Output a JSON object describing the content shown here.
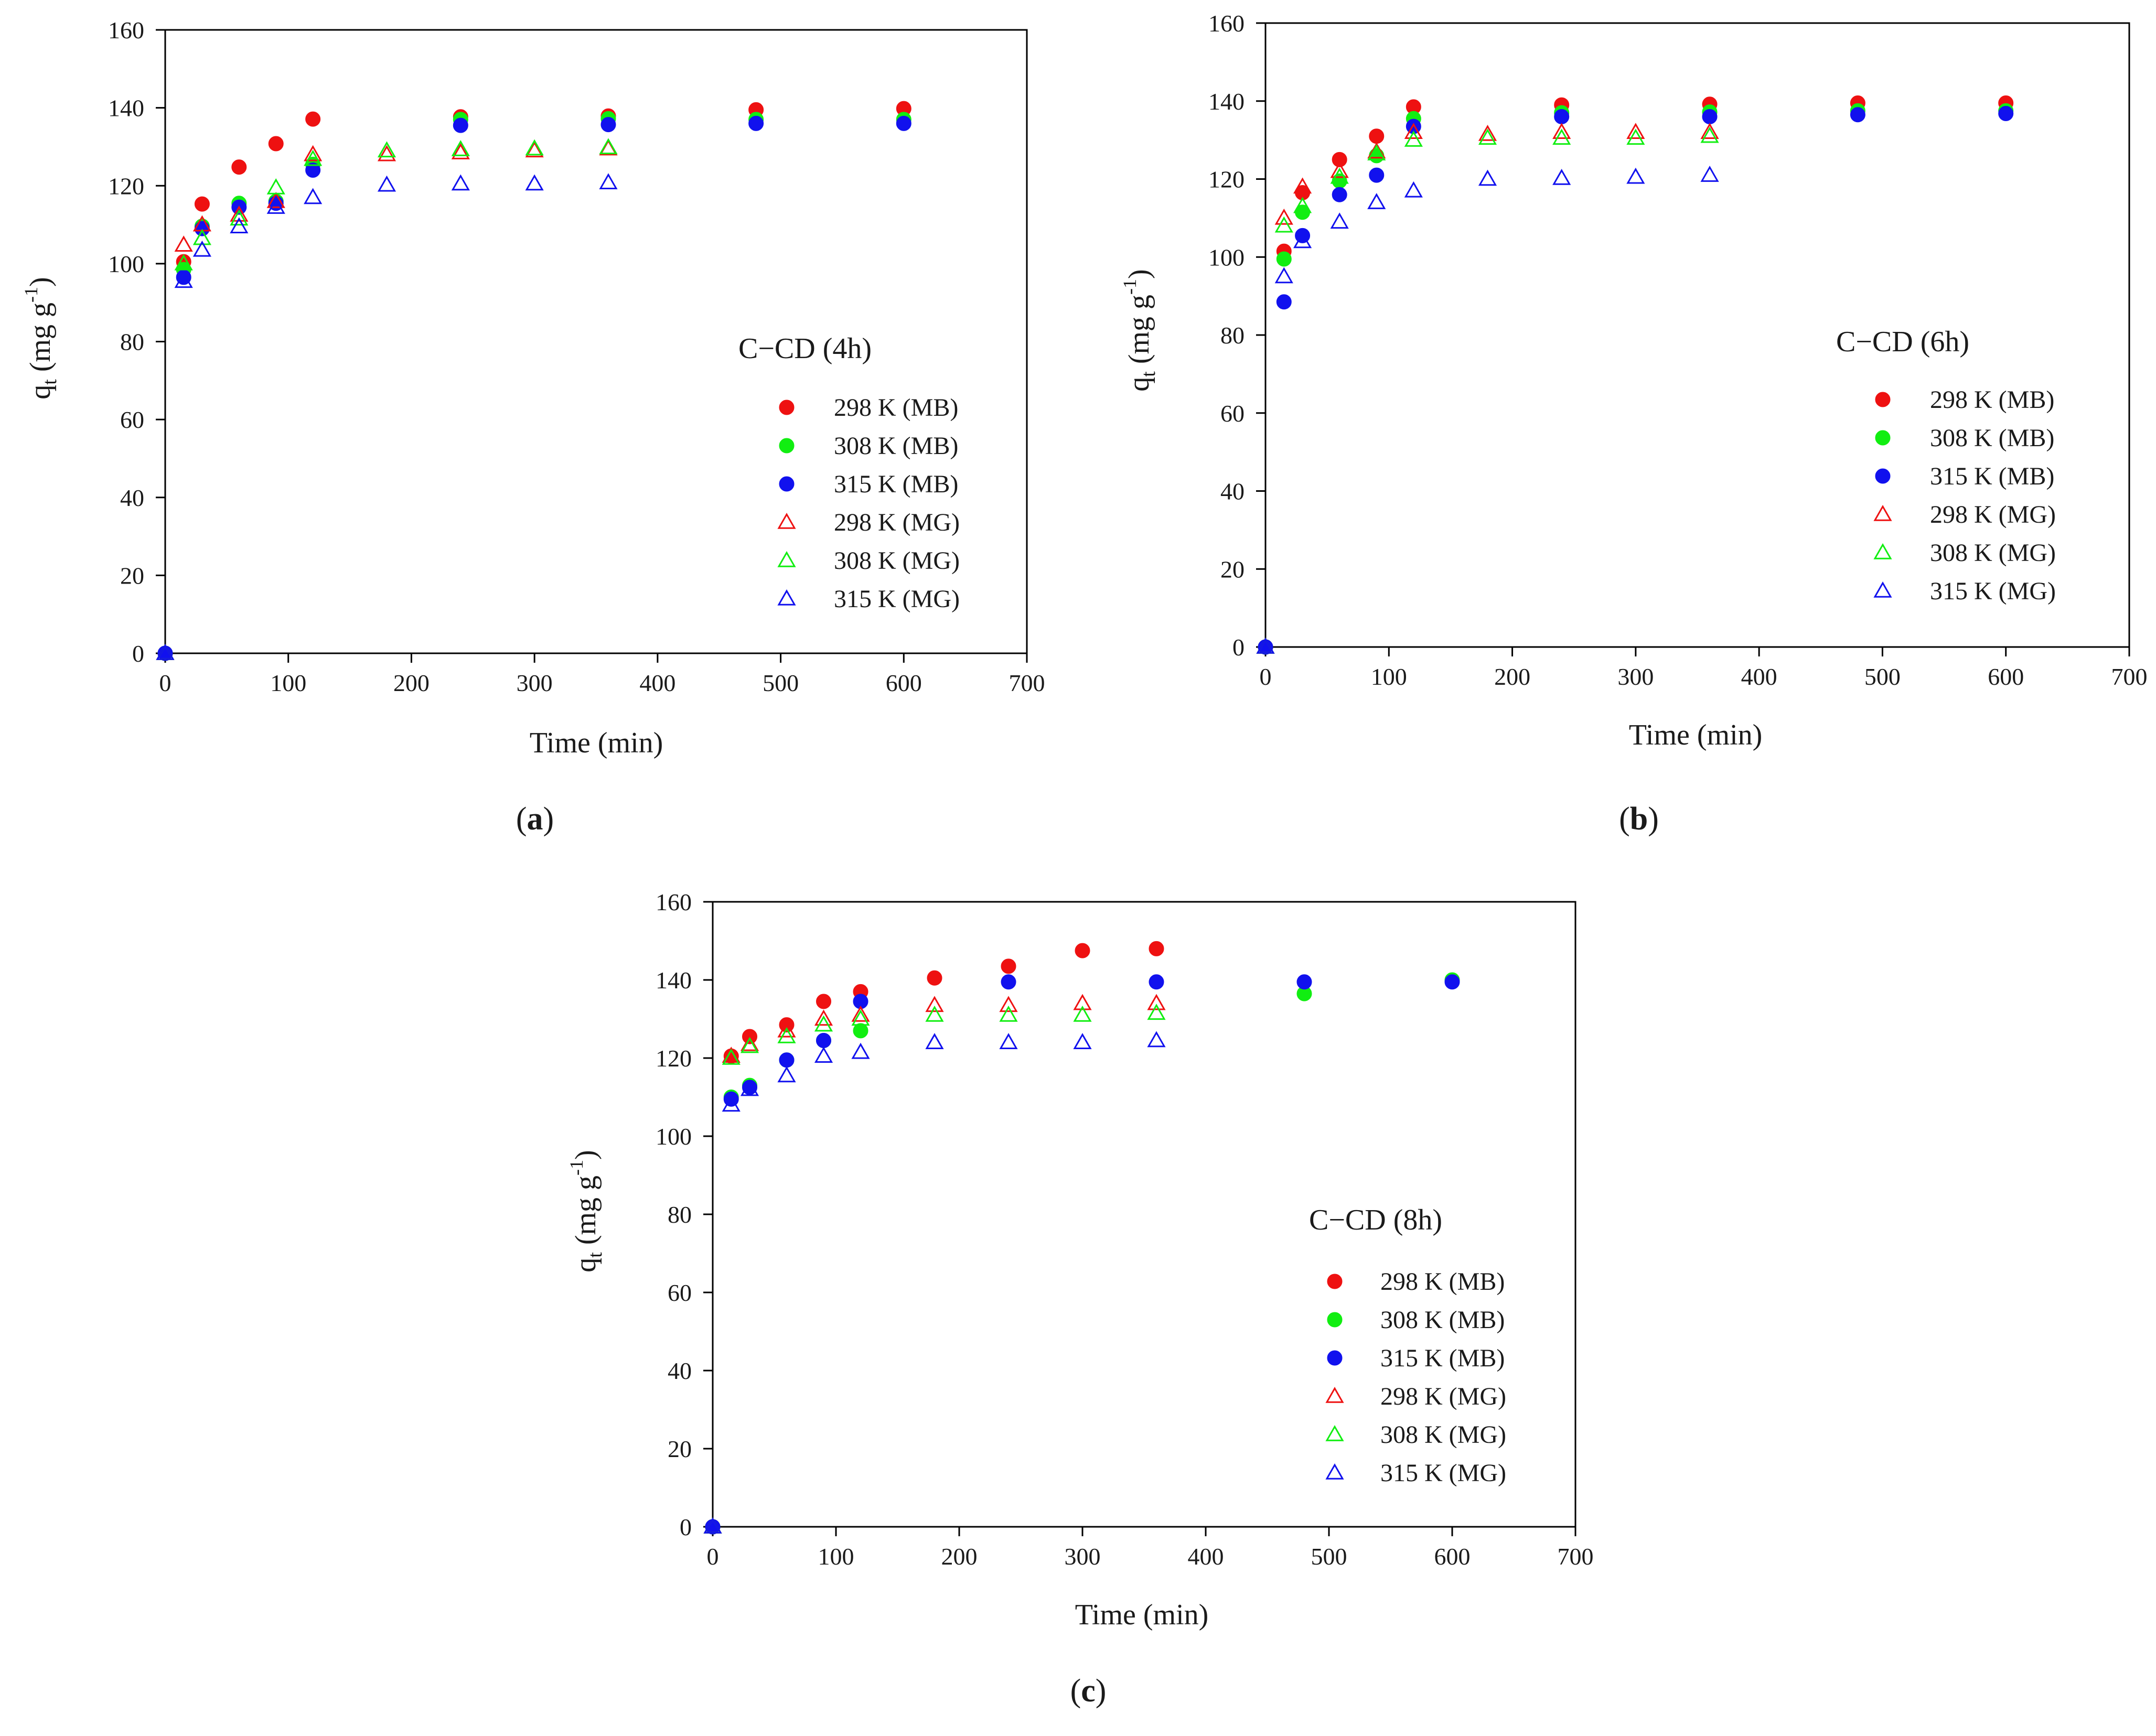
{
  "figure": {
    "colors": {
      "red": "#ee1111",
      "green": "#11ee11",
      "blue": "#1111ee",
      "axis": "#000000"
    }
  },
  "chart_data": [
    {
      "type": "scatter",
      "panel_label": "a",
      "title": "C−CD (4h)",
      "xlabel": "Time (min)",
      "ylabel_base": "q",
      "ylabel_sub": "t",
      "ylabel_open": " (mg g",
      "ylabel_sup": "-1",
      "ylabel_close": ")",
      "xlim": [
        0,
        700
      ],
      "ylim": [
        0,
        160
      ],
      "xticks": [
        0,
        100,
        200,
        300,
        400,
        500,
        600,
        700
      ],
      "yticks": [
        0,
        20,
        40,
        60,
        80,
        100,
        120,
        140,
        160
      ],
      "legend_position": "right",
      "series": [
        {
          "name": "298 K (MB)",
          "marker": "circle",
          "color": "red",
          "x": [
            0,
            15,
            30,
            60,
            90,
            120,
            240,
            360,
            480,
            600
          ],
          "y": [
            0,
            100.5,
            115.3,
            124.8,
            130.8,
            137.1,
            137.7,
            137.9,
            139.5,
            139.8
          ]
        },
        {
          "name": "308 K (MB)",
          "marker": "circle",
          "color": "green",
          "x": [
            0,
            15,
            30,
            60,
            90,
            120,
            240,
            360,
            480,
            600
          ],
          "y": [
            0,
            98.5,
            109.6,
            115.5,
            116.0,
            125.5,
            137.0,
            137.2,
            137.0,
            137.0
          ]
        },
        {
          "name": "315 K (MB)",
          "marker": "circle",
          "color": "blue",
          "x": [
            0,
            15,
            30,
            60,
            90,
            120,
            240,
            360,
            480,
            600
          ],
          "y": [
            0,
            96.5,
            109.0,
            114.5,
            115.5,
            124.0,
            135.5,
            135.7,
            136.0,
            136.0
          ]
        },
        {
          "name": "298 K (MG)",
          "marker": "triangle",
          "color": "red",
          "x": [
            0,
            15,
            30,
            60,
            90,
            120,
            180,
            240,
            300,
            360
          ],
          "y": [
            0,
            104.8,
            110.0,
            112.5,
            116.0,
            128.0,
            128.0,
            128.5,
            129.0,
            129.5
          ]
        },
        {
          "name": "308 K (MG)",
          "marker": "triangle",
          "color": "green",
          "x": [
            0,
            15,
            30,
            60,
            90,
            120,
            180,
            240,
            300,
            360
          ],
          "y": [
            0,
            100.0,
            106.5,
            111.5,
            119.5,
            126.8,
            129.0,
            129.3,
            129.5,
            129.8
          ]
        },
        {
          "name": "315 K (MG)",
          "marker": "triangle",
          "color": "blue",
          "x": [
            0,
            15,
            30,
            60,
            90,
            120,
            180,
            240,
            300,
            360
          ],
          "y": [
            0,
            95.5,
            103.5,
            109.5,
            114.5,
            117.0,
            120.2,
            120.5,
            120.5,
            120.8
          ]
        }
      ]
    },
    {
      "type": "scatter",
      "panel_label": "b",
      "title": "C−CD (6h)",
      "xlabel": "Time (min)",
      "ylabel_base": "q",
      "ylabel_sub": "t",
      "ylabel_open": " (mg g",
      "ylabel_sup": "-1",
      "ylabel_close": ")",
      "xlim": [
        0,
        700
      ],
      "ylim": [
        0,
        160
      ],
      "xticks": [
        0,
        100,
        200,
        300,
        400,
        500,
        600,
        700
      ],
      "yticks": [
        0,
        20,
        40,
        60,
        80,
        100,
        120,
        140,
        160
      ],
      "legend_position": "right",
      "series": [
        {
          "name": "298 K (MB)",
          "marker": "circle",
          "color": "red",
          "x": [
            0,
            15,
            30,
            60,
            90,
            120,
            240,
            360,
            480,
            600
          ],
          "y": [
            0,
            101.5,
            116.5,
            125.0,
            131.0,
            138.5,
            139.0,
            139.2,
            139.5,
            139.5
          ]
        },
        {
          "name": "308 K (MB)",
          "marker": "circle",
          "color": "green",
          "x": [
            0,
            15,
            30,
            60,
            90,
            120,
            240,
            360,
            480,
            600
          ],
          "y": [
            0,
            99.5,
            111.5,
            119.5,
            126.0,
            135.5,
            137.0,
            137.2,
            137.5,
            137.5
          ]
        },
        {
          "name": "315 K (MB)",
          "marker": "circle",
          "color": "blue",
          "x": [
            0,
            15,
            30,
            60,
            90,
            120,
            240,
            360,
            480,
            600
          ],
          "y": [
            0,
            88.5,
            105.5,
            116.0,
            121.0,
            133.5,
            136.0,
            136.0,
            136.5,
            136.8
          ]
        },
        {
          "name": "298 K (MG)",
          "marker": "triangle",
          "color": "red",
          "x": [
            0,
            15,
            30,
            60,
            90,
            120,
            180,
            240,
            300,
            360
          ],
          "y": [
            0,
            110.0,
            118.0,
            122.0,
            127.0,
            132.0,
            131.5,
            132.0,
            132.0,
            132.0
          ]
        },
        {
          "name": "308 K (MG)",
          "marker": "triangle",
          "color": "green",
          "x": [
            0,
            15,
            30,
            60,
            90,
            120,
            180,
            240,
            300,
            360
          ],
          "y": [
            0,
            108.0,
            113.0,
            120.5,
            126.5,
            130.0,
            130.5,
            130.5,
            130.5,
            131.0
          ]
        },
        {
          "name": "315 K (MG)",
          "marker": "triangle",
          "color": "blue",
          "x": [
            0,
            15,
            30,
            60,
            90,
            120,
            180,
            240,
            300,
            360
          ],
          "y": [
            0,
            95.0,
            104.0,
            109.0,
            114.0,
            117.0,
            120.0,
            120.2,
            120.5,
            121.0
          ]
        }
      ]
    },
    {
      "type": "scatter",
      "panel_label": "c",
      "title": "C−CD (8h)",
      "xlabel": "Time (min)",
      "ylabel_base": "q",
      "ylabel_sub": "t",
      "ylabel_open": " (mg g",
      "ylabel_sup": "-1",
      "ylabel_close": ")",
      "xlim": [
        0,
        700
      ],
      "ylim": [
        0,
        160
      ],
      "xticks": [
        0,
        100,
        200,
        300,
        400,
        500,
        600,
        700
      ],
      "yticks": [
        0,
        20,
        40,
        60,
        80,
        100,
        120,
        140,
        160
      ],
      "legend_position": "right",
      "series": [
        {
          "name": "298 K (MB)",
          "marker": "circle",
          "color": "red",
          "x": [
            0,
            15,
            30,
            60,
            90,
            120,
            180,
            240,
            300,
            360
          ],
          "y": [
            0,
            120.5,
            125.5,
            128.5,
            134.5,
            137.0,
            140.5,
            143.5,
            147.5,
            148.0
          ]
        },
        {
          "name": "308 K (MB)",
          "marker": "circle",
          "color": "green",
          "x": [
            0,
            15,
            30,
            60,
            90,
            120,
            480,
            600
          ],
          "y": [
            0,
            110.0,
            113.0,
            119.5,
            124.5,
            127.0,
            136.5,
            140.0
          ]
        },
        {
          "name": "315 K (MB)",
          "marker": "circle",
          "color": "blue",
          "x": [
            0,
            15,
            30,
            60,
            90,
            120,
            240,
            360,
            480,
            600
          ],
          "y": [
            0,
            109.5,
            112.5,
            119.5,
            124.5,
            134.5,
            139.5,
            139.5,
            139.5,
            139.5
          ]
        },
        {
          "name": "298 K (MG)",
          "marker": "triangle",
          "color": "red",
          "x": [
            0,
            15,
            30,
            60,
            90,
            120,
            180,
            240,
            300,
            360
          ],
          "y": [
            0,
            120.5,
            123.5,
            127.0,
            130.0,
            131.0,
            133.5,
            133.5,
            134.0,
            134.0
          ]
        },
        {
          "name": "308 K (MG)",
          "marker": "triangle",
          "color": "green",
          "x": [
            0,
            15,
            30,
            60,
            90,
            120,
            180,
            240,
            300,
            360
          ],
          "y": [
            0,
            120.0,
            123.0,
            125.5,
            128.5,
            130.0,
            131.0,
            131.0,
            131.0,
            131.5
          ]
        },
        {
          "name": "315 K (MG)",
          "marker": "triangle",
          "color": "blue",
          "x": [
            0,
            15,
            30,
            60,
            90,
            120,
            180,
            240,
            300,
            360
          ],
          "y": [
            0,
            108.0,
            112.0,
            115.5,
            120.5,
            121.5,
            124.0,
            124.0,
            124.0,
            124.5
          ]
        }
      ]
    }
  ]
}
